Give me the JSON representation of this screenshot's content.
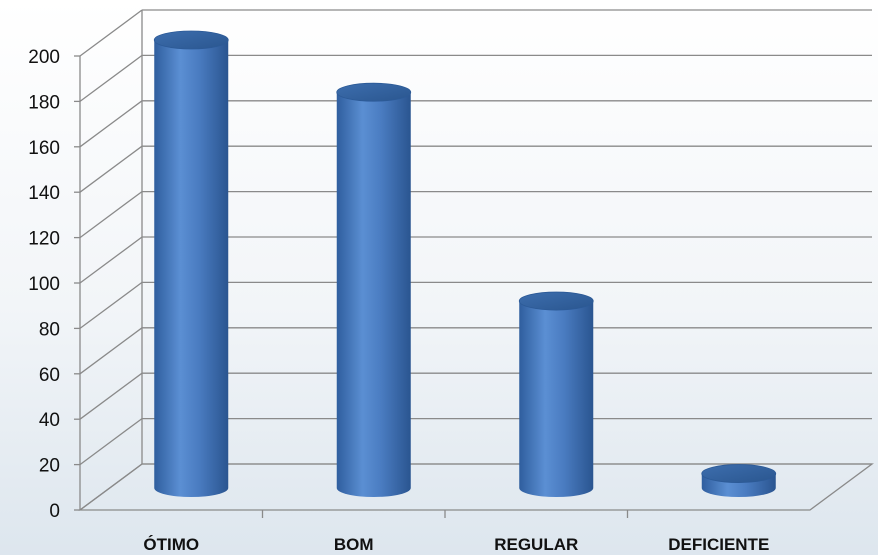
{
  "chart_data": {
    "type": "bar",
    "style": "3d-cylinder",
    "categories": [
      "ÓTIMO",
      "BOM",
      "REGULAR",
      "DEFICIENTE"
    ],
    "values": [
      200,
      177,
      85,
      9
    ],
    "title": "",
    "xlabel": "",
    "ylabel": "",
    "ylim": [
      0,
      200
    ],
    "yticks": [
      0,
      20,
      40,
      60,
      80,
      100,
      120,
      140,
      160,
      180,
      200
    ],
    "grid": true,
    "legend": "none"
  },
  "colors": {
    "bar": "#4a7cc1",
    "bar_dark": "#2c5a97",
    "bar_light": "#7aa6dc",
    "grid": "#8a8a8a"
  }
}
